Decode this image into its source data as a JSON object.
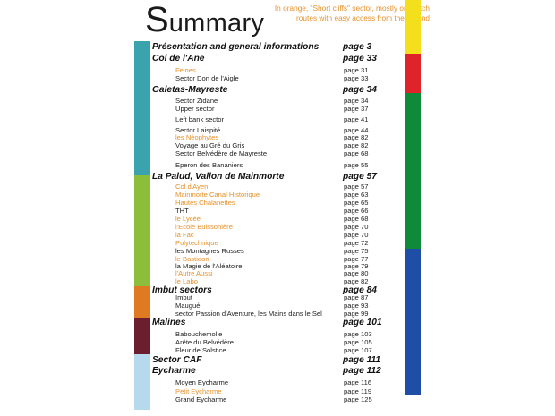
{
  "title": {
    "initial": "S",
    "rest": "ummary"
  },
  "note": "In orange, \"Short cliffs\" sector, mostly one pitch routes with easy access from the ground",
  "colors": {
    "orange_text": "#e8912a",
    "band_teal": "#3ba3ad",
    "band_green": "#8cbd3b",
    "band_orange": "#e07a22",
    "band_maroon": "#6b1f2e",
    "band_lightblue": "#b7d9ee",
    "tab_yellow": "#f4df1c",
    "tab_red": "#e0232b",
    "tab_green": "#0f8a3a",
    "tab_blue": "#1f4ea6"
  },
  "sections": [
    {
      "label": "Présentation and general informations",
      "page": "page 3",
      "items": []
    },
    {
      "label": "Col de l'Ane",
      "page": "page 33",
      "items": [
        {
          "label": "Feines",
          "page": "page 31",
          "orange": true
        },
        {
          "label": "Sector Don de l'Aigle",
          "page": "page 33",
          "orange": false
        }
      ]
    },
    {
      "label": "Galetas-Mayreste",
      "page": "page 34",
      "items": [
        {
          "label": "Sector Zidane",
          "page": "page 34",
          "orange": false
        },
        {
          "label": "Upper sector",
          "page": "page 37",
          "orange": false
        },
        {
          "label": "Left bank sector",
          "page": "page 41",
          "orange": false
        },
        {
          "label": "Sector Laispité",
          "page": "page 44",
          "orange": false
        },
        {
          "label": "les Néophytes",
          "page": "page 82",
          "orange": true
        },
        {
          "label": "Voyage au Gré du Gris",
          "page": "page 82",
          "orange": false
        },
        {
          "label": "Sector Belvédère de Mayreste",
          "page": "page 68",
          "orange": false
        },
        {
          "label": "Eperon des Bananiers",
          "page": "page 55",
          "orange": false
        }
      ]
    },
    {
      "label": "La Palud, Vallon de Mainmorte",
      "page": "page 57",
      "items": [
        {
          "label": "Col d'Ayen",
          "page": "page 57",
          "orange": true
        },
        {
          "label": "Mainmorte Canal Historique",
          "page": "page 63",
          "orange": true
        },
        {
          "label": "Hautes Chalanettes",
          "page": "page 65",
          "orange": true
        },
        {
          "label": "THT",
          "page": "page 66",
          "orange": false
        },
        {
          "label": "le Lycée",
          "page": "page 68",
          "orange": true
        },
        {
          "label": "l'Ecole Buissonière",
          "page": "page 70",
          "orange": true
        },
        {
          "label": "la Fac",
          "page": "page 70",
          "orange": true
        },
        {
          "label": "Polytechnique",
          "page": "page 72",
          "orange": true
        },
        {
          "label": "les Montagnes Russes",
          "page": "page 75",
          "orange": false
        },
        {
          "label": "le Bastidon",
          "page": "page 77",
          "orange": true
        },
        {
          "label": "la Magie de l'Aléatoire",
          "page": "page 79",
          "orange": false
        },
        {
          "label": "l'Autre Aussi",
          "page": "page 80",
          "orange": true
        },
        {
          "label": "le Labo",
          "page": "page 82",
          "orange": true
        }
      ]
    },
    {
      "label": "Imbut sectors",
      "page": "page 84",
      "items": [
        {
          "label": "Imbut",
          "page": "page 87",
          "orange": false
        },
        {
          "label": "Maugué",
          "page": "page 93",
          "orange": false
        },
        {
          "label": "sector Passion d'Aventure, les Mains dans le Sel",
          "page": "page 99",
          "orange": false
        }
      ]
    },
    {
      "label": "Malines",
      "page": "page 101",
      "items": [
        {
          "label": "Babouchemolle",
          "page": "page 103",
          "orange": false
        },
        {
          "label": "Arête du Belvédère",
          "page": "page 105",
          "orange": false
        },
        {
          "label": "Fleur de Solstice",
          "page": "page 107",
          "orange": false
        }
      ]
    },
    {
      "label": "Sector CAF",
      "page": "page 111",
      "items": []
    },
    {
      "label": "Eycharme",
      "page": "page 112",
      "items": [
        {
          "label": "Moyen Eycharme",
          "page": "page 116",
          "orange": false
        },
        {
          "label": "Petit Eycharme",
          "page": "page 119",
          "orange": true
        },
        {
          "label": "Grand Eycharme",
          "page": "page 125",
          "orange": false
        }
      ]
    }
  ]
}
